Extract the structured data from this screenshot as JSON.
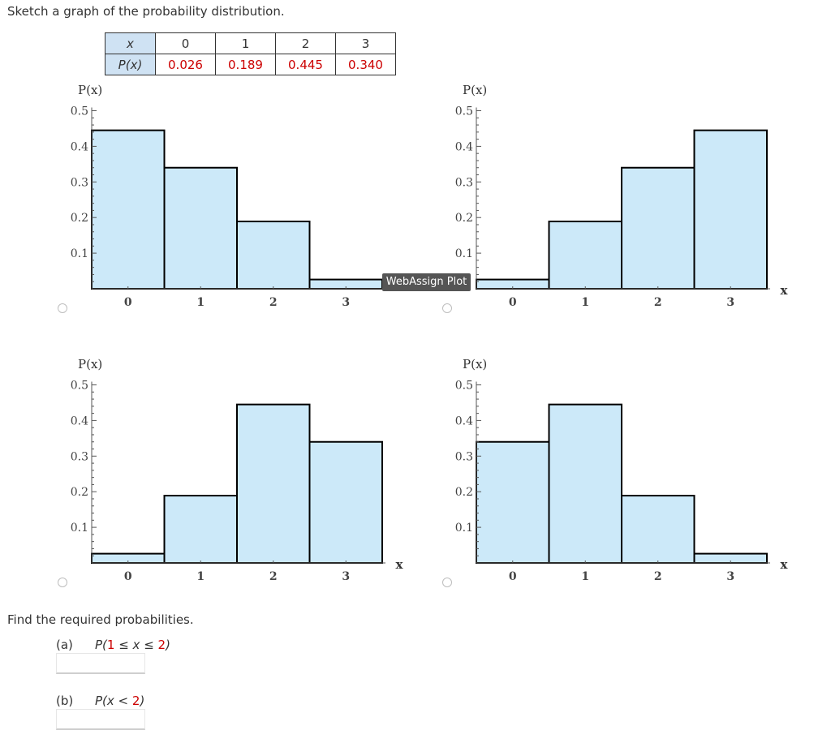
{
  "prompt": "Sketch a graph of the probability distribution.",
  "table": {
    "x_label": "x",
    "p_label": "P(x)",
    "x_values": [
      "0",
      "1",
      "2",
      "3"
    ],
    "p_values": [
      "0.026",
      "0.189",
      "0.445",
      "0.340"
    ]
  },
  "tooltip": "WebAssign Plot",
  "find_text": "Find the required probabilities.",
  "questions": [
    {
      "label": "(a)",
      "p_open": "P(",
      "n1": "1",
      "op1": " ≤ x ≤ ",
      "n2": "2",
      "close": ")",
      "answer": ""
    },
    {
      "label": "(b)",
      "p_open": "P(x < ",
      "n": "2",
      "close": ")",
      "answer": ""
    }
  ],
  "chart_data": [
    {
      "type": "bar",
      "categories": [
        "0",
        "1",
        "2",
        "3"
      ],
      "values": [
        0.445,
        0.34,
        0.189,
        0.026
      ],
      "ylabel": "P(x)",
      "xlabel": "",
      "ylim": [
        0,
        0.5
      ],
      "yticks": [
        "0.1",
        "0.2",
        "0.3",
        "0.4",
        "0.5"
      ],
      "fill": "#cce9f9"
    },
    {
      "type": "bar",
      "categories": [
        "0",
        "1",
        "2",
        "3"
      ],
      "values": [
        0.026,
        0.189,
        0.34,
        0.445
      ],
      "ylabel": "P(x)",
      "xlabel": "x",
      "ylim": [
        0,
        0.5
      ],
      "yticks": [
        "0.1",
        "0.2",
        "0.3",
        "0.4",
        "0.5"
      ],
      "fill": "#cce9f9"
    },
    {
      "type": "bar",
      "categories": [
        "0",
        "1",
        "2",
        "3"
      ],
      "values": [
        0.026,
        0.189,
        0.445,
        0.34
      ],
      "ylabel": "P(x)",
      "xlabel": "x",
      "ylim": [
        0,
        0.5
      ],
      "yticks": [
        "0.1",
        "0.2",
        "0.3",
        "0.4",
        "0.5"
      ],
      "fill": "#cce9f9"
    },
    {
      "type": "bar",
      "categories": [
        "0",
        "1",
        "2",
        "3"
      ],
      "values": [
        0.34,
        0.445,
        0.189,
        0.026
      ],
      "ylabel": "P(x)",
      "xlabel": "x",
      "ylim": [
        0,
        0.5
      ],
      "yticks": [
        "0.1",
        "0.2",
        "0.3",
        "0.4",
        "0.5"
      ],
      "fill": "#cce9f9"
    }
  ]
}
